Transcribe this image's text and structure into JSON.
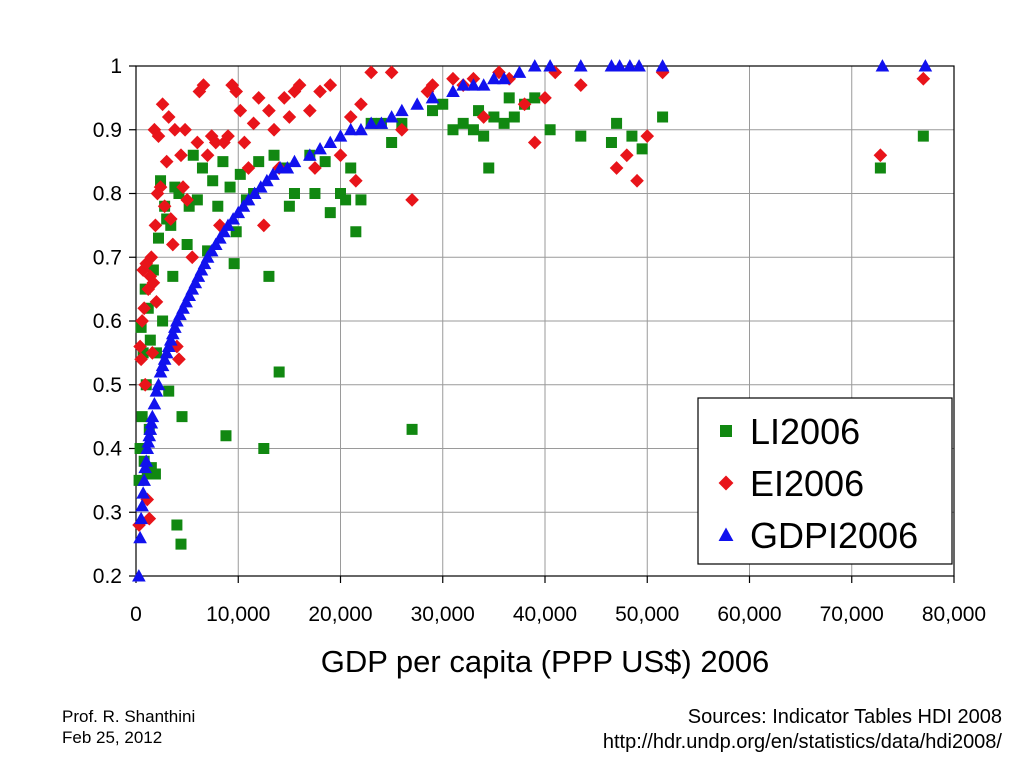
{
  "chart_data": {
    "type": "scatter",
    "xlabel": "GDP per capita (PPP US$) 2006",
    "ylabel": "",
    "xlim": [
      0,
      80000
    ],
    "ylim": [
      0.2,
      1.0
    ],
    "x_ticks": [
      "0",
      "10,000",
      "20,000",
      "30,000",
      "40,000",
      "50,000",
      "60,000",
      "70,000",
      "80,000"
    ],
    "x_tick_values": [
      0,
      10000,
      20000,
      30000,
      40000,
      50000,
      60000,
      70000,
      80000
    ],
    "y_ticks": [
      "0.2",
      "0.3",
      "0.4",
      "0.5",
      "0.6",
      "0.7",
      "0.8",
      "0.9",
      "1"
    ],
    "y_tick_values": [
      0.2,
      0.3,
      0.4,
      0.5,
      0.6,
      0.7,
      0.8,
      0.9,
      1.0
    ],
    "grid": true,
    "legend_position": "bottom-right",
    "series": [
      {
        "name": "LI2006",
        "color": "#118811",
        "marker": "square",
        "points": [
          [
            300,
            0.35
          ],
          [
            400,
            0.4
          ],
          [
            500,
            0.59
          ],
          [
            600,
            0.45
          ],
          [
            700,
            0.55
          ],
          [
            800,
            0.38
          ],
          [
            900,
            0.65
          ],
          [
            1000,
            0.5
          ],
          [
            1100,
            0.36
          ],
          [
            1200,
            0.62
          ],
          [
            1300,
            0.43
          ],
          [
            1400,
            0.57
          ],
          [
            1500,
            0.37
          ],
          [
            1700,
            0.68
          ],
          [
            1900,
            0.36
          ],
          [
            2000,
            0.55
          ],
          [
            2200,
            0.73
          ],
          [
            2400,
            0.82
          ],
          [
            2600,
            0.6
          ],
          [
            2800,
            0.78
          ],
          [
            3000,
            0.76
          ],
          [
            3200,
            0.49
          ],
          [
            3400,
            0.75
          ],
          [
            3600,
            0.67
          ],
          [
            3800,
            0.81
          ],
          [
            4000,
            0.28
          ],
          [
            4200,
            0.8
          ],
          [
            4400,
            0.25
          ],
          [
            4500,
            0.45
          ],
          [
            5000,
            0.72
          ],
          [
            5200,
            0.78
          ],
          [
            5600,
            0.86
          ],
          [
            6000,
            0.79
          ],
          [
            6500,
            0.84
          ],
          [
            7000,
            0.71
          ],
          [
            7500,
            0.82
          ],
          [
            8000,
            0.78
          ],
          [
            8500,
            0.85
          ],
          [
            8800,
            0.42
          ],
          [
            9200,
            0.81
          ],
          [
            9600,
            0.69
          ],
          [
            9800,
            0.74
          ],
          [
            10200,
            0.83
          ],
          [
            10800,
            0.79
          ],
          [
            11500,
            0.8
          ],
          [
            12000,
            0.85
          ],
          [
            12500,
            0.4
          ],
          [
            13000,
            0.67
          ],
          [
            13500,
            0.86
          ],
          [
            14000,
            0.52
          ],
          [
            14500,
            0.84
          ],
          [
            15000,
            0.78
          ],
          [
            15500,
            0.8
          ],
          [
            17000,
            0.86
          ],
          [
            17500,
            0.8
          ],
          [
            18500,
            0.85
          ],
          [
            19000,
            0.77
          ],
          [
            20000,
            0.8
          ],
          [
            20500,
            0.79
          ],
          [
            21000,
            0.84
          ],
          [
            21500,
            0.74
          ],
          [
            22000,
            0.79
          ],
          [
            23000,
            0.91
          ],
          [
            24000,
            0.91
          ],
          [
            25000,
            0.88
          ],
          [
            26000,
            0.91
          ],
          [
            27000,
            0.43
          ],
          [
            29000,
            0.93
          ],
          [
            30000,
            0.94
          ],
          [
            31000,
            0.9
          ],
          [
            32000,
            0.91
          ],
          [
            33000,
            0.9
          ],
          [
            33500,
            0.93
          ],
          [
            34000,
            0.89
          ],
          [
            34500,
            0.84
          ],
          [
            35000,
            0.92
          ],
          [
            36000,
            0.91
          ],
          [
            36500,
            0.95
          ],
          [
            37000,
            0.92
          ],
          [
            38000,
            0.94
          ],
          [
            39000,
            0.95
          ],
          [
            40500,
            0.9
          ],
          [
            43500,
            0.89
          ],
          [
            46500,
            0.88
          ],
          [
            47000,
            0.91
          ],
          [
            48500,
            0.89
          ],
          [
            49500,
            0.87
          ],
          [
            51500,
            0.92
          ],
          [
            72800,
            0.84
          ],
          [
            77000,
            0.89
          ]
        ]
      },
      {
        "name": "EI2006",
        "color": "#e8141a",
        "marker": "diamond",
        "points": [
          [
            300,
            0.28
          ],
          [
            400,
            0.56
          ],
          [
            500,
            0.54
          ],
          [
            600,
            0.6
          ],
          [
            700,
            0.68
          ],
          [
            800,
            0.62
          ],
          [
            900,
            0.5
          ],
          [
            1000,
            0.69
          ],
          [
            1100,
            0.32
          ],
          [
            1200,
            0.65
          ],
          [
            1300,
            0.29
          ],
          [
            1400,
            0.67
          ],
          [
            1500,
            0.7
          ],
          [
            1600,
            0.55
          ],
          [
            1700,
            0.66
          ],
          [
            1800,
            0.9
          ],
          [
            1900,
            0.75
          ],
          [
            2000,
            0.63
          ],
          [
            2100,
            0.8
          ],
          [
            2200,
            0.89
          ],
          [
            2400,
            0.81
          ],
          [
            2600,
            0.94
          ],
          [
            2800,
            0.78
          ],
          [
            3000,
            0.85
          ],
          [
            3200,
            0.92
          ],
          [
            3400,
            0.76
          ],
          [
            3600,
            0.72
          ],
          [
            3800,
            0.9
          ],
          [
            4000,
            0.56
          ],
          [
            4200,
            0.54
          ],
          [
            4400,
            0.86
          ],
          [
            4600,
            0.81
          ],
          [
            4800,
            0.9
          ],
          [
            5000,
            0.79
          ],
          [
            5500,
            0.7
          ],
          [
            6000,
            0.88
          ],
          [
            6200,
            0.96
          ],
          [
            6600,
            0.97
          ],
          [
            7000,
            0.86
          ],
          [
            7400,
            0.89
          ],
          [
            7800,
            0.88
          ],
          [
            8200,
            0.75
          ],
          [
            8600,
            0.88
          ],
          [
            9000,
            0.89
          ],
          [
            9400,
            0.97
          ],
          [
            9800,
            0.96
          ],
          [
            10200,
            0.93
          ],
          [
            10600,
            0.88
          ],
          [
            11000,
            0.84
          ],
          [
            11500,
            0.91
          ],
          [
            12000,
            0.95
          ],
          [
            12500,
            0.75
          ],
          [
            13000,
            0.93
          ],
          [
            13500,
            0.9
          ],
          [
            14000,
            0.84
          ],
          [
            14500,
            0.95
          ],
          [
            15000,
            0.92
          ],
          [
            15500,
            0.96
          ],
          [
            16000,
            0.97
          ],
          [
            17000,
            0.93
          ],
          [
            17500,
            0.84
          ],
          [
            18000,
            0.96
          ],
          [
            19000,
            0.97
          ],
          [
            20000,
            0.86
          ],
          [
            21000,
            0.92
          ],
          [
            21500,
            0.82
          ],
          [
            22000,
            0.94
          ],
          [
            23000,
            0.99
          ],
          [
            25000,
            0.99
          ],
          [
            26000,
            0.9
          ],
          [
            27000,
            0.79
          ],
          [
            28500,
            0.96
          ],
          [
            29000,
            0.97
          ],
          [
            31000,
            0.98
          ],
          [
            32000,
            0.97
          ],
          [
            33000,
            0.98
          ],
          [
            34000,
            0.92
          ],
          [
            35500,
            0.99
          ],
          [
            36500,
            0.98
          ],
          [
            38000,
            0.94
          ],
          [
            39000,
            0.88
          ],
          [
            40000,
            0.95
          ],
          [
            41000,
            0.99
          ],
          [
            43500,
            0.97
          ],
          [
            47000,
            0.84
          ],
          [
            48000,
            0.86
          ],
          [
            49000,
            0.82
          ],
          [
            50000,
            0.89
          ],
          [
            51500,
            0.99
          ],
          [
            72800,
            0.86
          ],
          [
            77000,
            0.98
          ]
        ]
      },
      {
        "name": "GDPI2006",
        "color": "#1111ee",
        "marker": "triangle",
        "points": [
          [
            280,
            0.2
          ],
          [
            400,
            0.26
          ],
          [
            500,
            0.29
          ],
          [
            600,
            0.31
          ],
          [
            700,
            0.33
          ],
          [
            800,
            0.35
          ],
          [
            900,
            0.37
          ],
          [
            1000,
            0.38
          ],
          [
            1100,
            0.4
          ],
          [
            1200,
            0.41
          ],
          [
            1300,
            0.42
          ],
          [
            1400,
            0.43
          ],
          [
            1500,
            0.44
          ],
          [
            1600,
            0.45
          ],
          [
            1800,
            0.47
          ],
          [
            2000,
            0.49
          ],
          [
            2200,
            0.5
          ],
          [
            2400,
            0.52
          ],
          [
            2600,
            0.53
          ],
          [
            2800,
            0.54
          ],
          [
            3000,
            0.55
          ],
          [
            3200,
            0.56
          ],
          [
            3400,
            0.57
          ],
          [
            3600,
            0.58
          ],
          [
            3800,
            0.59
          ],
          [
            4000,
            0.6
          ],
          [
            4300,
            0.61
          ],
          [
            4600,
            0.62
          ],
          [
            4900,
            0.63
          ],
          [
            5200,
            0.64
          ],
          [
            5500,
            0.65
          ],
          [
            5800,
            0.66
          ],
          [
            6100,
            0.67
          ],
          [
            6400,
            0.68
          ],
          [
            6700,
            0.69
          ],
          [
            7000,
            0.7
          ],
          [
            7400,
            0.71
          ],
          [
            7800,
            0.72
          ],
          [
            8200,
            0.73
          ],
          [
            8600,
            0.74
          ],
          [
            9000,
            0.75
          ],
          [
            9500,
            0.76
          ],
          [
            10000,
            0.77
          ],
          [
            10500,
            0.78
          ],
          [
            11000,
            0.79
          ],
          [
            11600,
            0.8
          ],
          [
            12200,
            0.81
          ],
          [
            12800,
            0.82
          ],
          [
            13400,
            0.83
          ],
          [
            14100,
            0.84
          ],
          [
            14800,
            0.84
          ],
          [
            15500,
            0.85
          ],
          [
            17000,
            0.86
          ],
          [
            18000,
            0.87
          ],
          [
            19000,
            0.88
          ],
          [
            20000,
            0.89
          ],
          [
            21000,
            0.9
          ],
          [
            22000,
            0.9
          ],
          [
            23000,
            0.91
          ],
          [
            24000,
            0.91
          ],
          [
            25000,
            0.92
          ],
          [
            26000,
            0.93
          ],
          [
            27500,
            0.94
          ],
          [
            29000,
            0.95
          ],
          [
            31000,
            0.96
          ],
          [
            32000,
            0.97
          ],
          [
            33000,
            0.97
          ],
          [
            34000,
            0.97
          ],
          [
            35000,
            0.98
          ],
          [
            36000,
            0.98
          ],
          [
            37500,
            0.99
          ],
          [
            39000,
            1.0
          ],
          [
            40500,
            1.0
          ],
          [
            43500,
            1.0
          ],
          [
            46500,
            1.0
          ],
          [
            47300,
            1.0
          ],
          [
            48300,
            1.0
          ],
          [
            49200,
            1.0
          ],
          [
            51500,
            1.0
          ],
          [
            73000,
            1.0
          ],
          [
            77200,
            1.0
          ]
        ]
      }
    ]
  },
  "footer": {
    "author": "Prof. R. Shanthini",
    "date": "Feb 25, 2012",
    "source_line1": "Sources: Indicator Tables HDI 2008",
    "source_line2": "http://hdr.undp.org/en/statistics/data/hdi2008/"
  }
}
